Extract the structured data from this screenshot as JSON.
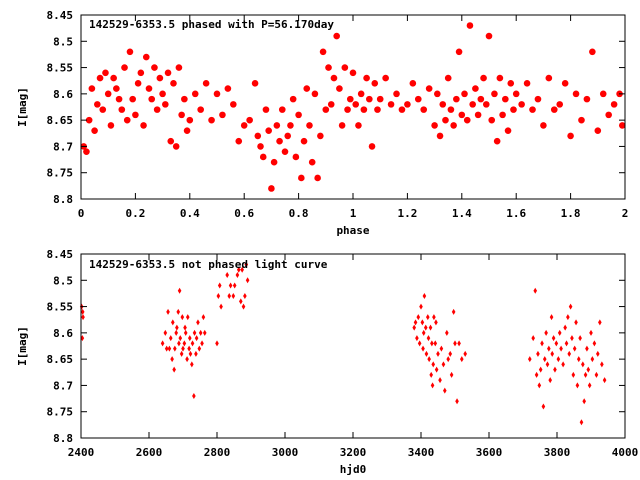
{
  "chart_data": [
    {
      "type": "scatter",
      "title": "142529-6353.5 phased with P=56.170day",
      "xlabel": "phase",
      "ylabel": "I[mag]",
      "xlim": [
        0,
        2
      ],
      "ylim": [
        8.45,
        8.8
      ],
      "y_inverted": true,
      "grid": false,
      "marker": "filled-circle",
      "color": "#ff0000",
      "xticks": [
        "0",
        "0.2",
        "0.4",
        "0.6",
        "0.8",
        "1",
        "1.2",
        "1.4",
        "1.6",
        "1.8",
        "2"
      ],
      "yticks": [
        "8.45",
        "8.5",
        "8.55",
        "8.6",
        "8.65",
        "8.7",
        "8.75",
        "8.8"
      ],
      "points": [
        [
          0.01,
          8.7
        ],
        [
          0.02,
          8.71
        ],
        [
          0.03,
          8.65
        ],
        [
          0.04,
          8.59
        ],
        [
          0.05,
          8.67
        ],
        [
          0.06,
          8.62
        ],
        [
          0.07,
          8.57
        ],
        [
          0.08,
          8.63
        ],
        [
          0.09,
          8.56
        ],
        [
          0.1,
          8.6
        ],
        [
          0.11,
          8.66
        ],
        [
          0.12,
          8.57
        ],
        [
          0.13,
          8.59
        ],
        [
          0.14,
          8.61
        ],
        [
          0.15,
          8.63
        ],
        [
          0.16,
          8.55
        ],
        [
          0.17,
          8.65
        ],
        [
          0.18,
          8.52
        ],
        [
          0.19,
          8.61
        ],
        [
          0.2,
          8.64
        ],
        [
          0.21,
          8.58
        ],
        [
          0.22,
          8.56
        ],
        [
          0.23,
          8.66
        ],
        [
          0.24,
          8.53
        ],
        [
          0.25,
          8.59
        ],
        [
          0.26,
          8.61
        ],
        [
          0.27,
          8.55
        ],
        [
          0.28,
          8.63
        ],
        [
          0.29,
          8.57
        ],
        [
          0.3,
          8.6
        ],
        [
          0.31,
          8.62
        ],
        [
          0.32,
          8.56
        ],
        [
          0.33,
          8.69
        ],
        [
          0.34,
          8.58
        ],
        [
          0.35,
          8.7
        ],
        [
          0.36,
          8.55
        ],
        [
          0.37,
          8.64
        ],
        [
          0.38,
          8.61
        ],
        [
          0.39,
          8.67
        ],
        [
          0.4,
          8.65
        ],
        [
          0.42,
          8.6
        ],
        [
          0.44,
          8.63
        ],
        [
          0.46,
          8.58
        ],
        [
          0.48,
          8.65
        ],
        [
          0.5,
          8.6
        ],
        [
          0.52,
          8.64
        ],
        [
          0.54,
          8.59
        ],
        [
          0.56,
          8.62
        ],
        [
          0.58,
          8.69
        ],
        [
          0.6,
          8.66
        ],
        [
          0.62,
          8.65
        ],
        [
          0.64,
          8.58
        ],
        [
          0.65,
          8.68
        ],
        [
          0.66,
          8.7
        ],
        [
          0.67,
          8.72
        ],
        [
          0.68,
          8.63
        ],
        [
          0.69,
          8.67
        ],
        [
          0.7,
          8.78
        ],
        [
          0.71,
          8.73
        ],
        [
          0.72,
          8.66
        ],
        [
          0.73,
          8.69
        ],
        [
          0.74,
          8.63
        ],
        [
          0.75,
          8.71
        ],
        [
          0.76,
          8.68
        ],
        [
          0.77,
          8.66
        ],
        [
          0.78,
          8.61
        ],
        [
          0.79,
          8.72
        ],
        [
          0.8,
          8.64
        ],
        [
          0.81,
          8.76
        ],
        [
          0.82,
          8.69
        ],
        [
          0.83,
          8.59
        ],
        [
          0.84,
          8.66
        ],
        [
          0.85,
          8.73
        ],
        [
          0.86,
          8.6
        ],
        [
          0.87,
          8.76
        ],
        [
          0.88,
          8.68
        ],
        [
          0.89,
          8.52
        ],
        [
          0.9,
          8.63
        ],
        [
          0.91,
          8.55
        ],
        [
          0.92,
          8.62
        ],
        [
          0.93,
          8.57
        ],
        [
          0.94,
          8.49
        ],
        [
          0.95,
          8.59
        ],
        [
          0.96,
          8.66
        ],
        [
          0.97,
          8.55
        ],
        [
          0.98,
          8.63
        ],
        [
          0.99,
          8.61
        ],
        [
          1.0,
          8.56
        ],
        [
          1.01,
          8.62
        ],
        [
          1.02,
          8.66
        ],
        [
          1.03,
          8.6
        ],
        [
          1.04,
          8.63
        ],
        [
          1.05,
          8.57
        ],
        [
          1.06,
          8.61
        ],
        [
          1.07,
          8.7
        ],
        [
          1.08,
          8.58
        ],
        [
          1.09,
          8.63
        ],
        [
          1.1,
          8.61
        ],
        [
          1.12,
          8.57
        ],
        [
          1.14,
          8.62
        ],
        [
          1.16,
          8.6
        ],
        [
          1.18,
          8.63
        ],
        [
          1.2,
          8.62
        ],
        [
          1.22,
          8.58
        ],
        [
          1.24,
          8.61
        ],
        [
          1.26,
          8.63
        ],
        [
          1.28,
          8.59
        ],
        [
          1.3,
          8.66
        ],
        [
          1.31,
          8.6
        ],
        [
          1.32,
          8.68
        ],
        [
          1.33,
          8.62
        ],
        [
          1.34,
          8.65
        ],
        [
          1.35,
          8.57
        ],
        [
          1.36,
          8.63
        ],
        [
          1.37,
          8.66
        ],
        [
          1.38,
          8.61
        ],
        [
          1.39,
          8.52
        ],
        [
          1.4,
          8.64
        ],
        [
          1.41,
          8.6
        ],
        [
          1.42,
          8.65
        ],
        [
          1.43,
          8.47
        ],
        [
          1.44,
          8.62
        ],
        [
          1.45,
          8.59
        ],
        [
          1.46,
          8.64
        ],
        [
          1.47,
          8.61
        ],
        [
          1.48,
          8.57
        ],
        [
          1.49,
          8.62
        ],
        [
          1.5,
          8.49
        ],
        [
          1.51,
          8.65
        ],
        [
          1.52,
          8.6
        ],
        [
          1.53,
          8.69
        ],
        [
          1.54,
          8.57
        ],
        [
          1.55,
          8.64
        ],
        [
          1.56,
          8.61
        ],
        [
          1.57,
          8.67
        ],
        [
          1.58,
          8.58
        ],
        [
          1.59,
          8.63
        ],
        [
          1.6,
          8.6
        ],
        [
          1.62,
          8.62
        ],
        [
          1.64,
          8.58
        ],
        [
          1.66,
          8.63
        ],
        [
          1.68,
          8.61
        ],
        [
          1.7,
          8.66
        ],
        [
          1.72,
          8.57
        ],
        [
          1.74,
          8.63
        ],
        [
          1.76,
          8.62
        ],
        [
          1.78,
          8.58
        ],
        [
          1.8,
          8.68
        ],
        [
          1.82,
          8.6
        ],
        [
          1.84,
          8.65
        ],
        [
          1.86,
          8.61
        ],
        [
          1.88,
          8.52
        ],
        [
          1.9,
          8.67
        ],
        [
          1.92,
          8.6
        ],
        [
          1.94,
          8.64
        ],
        [
          1.96,
          8.62
        ],
        [
          1.98,
          8.6
        ],
        [
          1.99,
          8.66
        ]
      ]
    },
    {
      "type": "scatter",
      "title": "142529-6353.5 not phased light curve",
      "xlabel": "hjd0",
      "ylabel": "I[mag]",
      "xlim": [
        2400,
        4000
      ],
      "ylim": [
        8.45,
        8.8
      ],
      "y_inverted": true,
      "grid": false,
      "marker": "small-diamond",
      "color": "#ff0000",
      "xticks": [
        "2400",
        "2600",
        "2800",
        "3000",
        "3200",
        "3400",
        "3600",
        "3800",
        "4000"
      ],
      "yticks": [
        "8.45",
        "8.5",
        "8.55",
        "8.6",
        "8.65",
        "8.7",
        "8.75",
        "8.8"
      ],
      "points": [
        [
          2402,
          8.55
        ],
        [
          2404,
          8.61
        ],
        [
          2406,
          8.57
        ],
        [
          2405,
          8.56
        ],
        [
          2640,
          8.62
        ],
        [
          2648,
          8.6
        ],
        [
          2652,
          8.63
        ],
        [
          2656,
          8.56
        ],
        [
          2660,
          8.63
        ],
        [
          2664,
          8.61
        ],
        [
          2668,
          8.65
        ],
        [
          2670,
          8.58
        ],
        [
          2674,
          8.67
        ],
        [
          2676,
          8.63
        ],
        [
          2680,
          8.6
        ],
        [
          2682,
          8.59
        ],
        [
          2686,
          8.56
        ],
        [
          2688,
          8.62
        ],
        [
          2690,
          8.52
        ],
        [
          2692,
          8.61
        ],
        [
          2696,
          8.64
        ],
        [
          2698,
          8.57
        ],
        [
          2700,
          8.63
        ],
        [
          2704,
          8.62
        ],
        [
          2706,
          8.59
        ],
        [
          2708,
          8.6
        ],
        [
          2712,
          8.65
        ],
        [
          2714,
          8.57
        ],
        [
          2718,
          8.63
        ],
        [
          2720,
          8.61
        ],
        [
          2722,
          8.64
        ],
        [
          2726,
          8.66
        ],
        [
          2728,
          8.62
        ],
        [
          2732,
          8.72
        ],
        [
          2734,
          8.6
        ],
        [
          2738,
          8.64
        ],
        [
          2740,
          8.61
        ],
        [
          2744,
          8.58
        ],
        [
          2748,
          8.63
        ],
        [
          2752,
          8.6
        ],
        [
          2756,
          8.62
        ],
        [
          2760,
          8.57
        ],
        [
          2764,
          8.6
        ],
        [
          2800,
          8.62
        ],
        [
          2804,
          8.53
        ],
        [
          2808,
          8.51
        ],
        [
          2812,
          8.55
        ],
        [
          2830,
          8.49
        ],
        [
          2836,
          8.53
        ],
        [
          2840,
          8.51
        ],
        [
          2848,
          8.53
        ],
        [
          2852,
          8.51
        ],
        [
          2860,
          8.49
        ],
        [
          2864,
          8.48
        ],
        [
          2870,
          8.54
        ],
        [
          2874,
          8.48
        ],
        [
          2878,
          8.55
        ],
        [
          2882,
          8.53
        ],
        [
          2886,
          8.47
        ],
        [
          2890,
          8.5
        ],
        [
          3380,
          8.59
        ],
        [
          3384,
          8.58
        ],
        [
          3388,
          8.61
        ],
        [
          3392,
          8.57
        ],
        [
          3396,
          8.62
        ],
        [
          3400,
          8.55
        ],
        [
          3404,
          8.58
        ],
        [
          3406,
          8.63
        ],
        [
          3408,
          8.6
        ],
        [
          3410,
          8.53
        ],
        [
          3414,
          8.59
        ],
        [
          3416,
          8.64
        ],
        [
          3420,
          8.57
        ],
        [
          3422,
          8.61
        ],
        [
          3424,
          8.65
        ],
        [
          3428,
          8.59
        ],
        [
          3430,
          8.68
        ],
        [
          3432,
          8.62
        ],
        [
          3434,
          8.7
        ],
        [
          3436,
          8.66
        ],
        [
          3438,
          8.57
        ],
        [
          3442,
          8.62
        ],
        [
          3444,
          8.58
        ],
        [
          3446,
          8.67
        ],
        [
          3450,
          8.64
        ],
        [
          3456,
          8.69
        ],
        [
          3460,
          8.63
        ],
        [
          3466,
          8.66
        ],
        [
          3470,
          8.71
        ],
        [
          3476,
          8.6
        ],
        [
          3480,
          8.65
        ],
        [
          3486,
          8.64
        ],
        [
          3490,
          8.68
        ],
        [
          3496,
          8.56
        ],
        [
          3500,
          8.62
        ],
        [
          3506,
          8.73
        ],
        [
          3512,
          8.62
        ],
        [
          3520,
          8.65
        ],
        [
          3530,
          8.64
        ],
        [
          3720,
          8.65
        ],
        [
          3730,
          8.61
        ],
        [
          3736,
          8.52
        ],
        [
          3740,
          8.68
        ],
        [
          3744,
          8.64
        ],
        [
          3748,
          8.7
        ],
        [
          3752,
          8.67
        ],
        [
          3756,
          8.62
        ],
        [
          3760,
          8.74
        ],
        [
          3764,
          8.65
        ],
        [
          3768,
          8.6
        ],
        [
          3772,
          8.66
        ],
        [
          3776,
          8.63
        ],
        [
          3780,
          8.69
        ],
        [
          3784,
          8.57
        ],
        [
          3786,
          8.64
        ],
        [
          3790,
          8.61
        ],
        [
          3794,
          8.67
        ],
        [
          3798,
          8.62
        ],
        [
          3804,
          8.65
        ],
        [
          3808,
          8.6
        ],
        [
          3812,
          8.63
        ],
        [
          3818,
          8.66
        ],
        [
          3824,
          8.59
        ],
        [
          3828,
          8.62
        ],
        [
          3832,
          8.57
        ],
        [
          3836,
          8.64
        ],
        [
          3840,
          8.55
        ],
        [
          3844,
          8.61
        ],
        [
          3848,
          8.68
        ],
        [
          3852,
          8.63
        ],
        [
          3856,
          8.58
        ],
        [
          3860,
          8.7
        ],
        [
          3864,
          8.65
        ],
        [
          3868,
          8.61
        ],
        [
          3872,
          8.77
        ],
        [
          3876,
          8.66
        ],
        [
          3880,
          8.73
        ],
        [
          3884,
          8.68
        ],
        [
          3888,
          8.63
        ],
        [
          3892,
          8.67
        ],
        [
          3896,
          8.7
        ],
        [
          3900,
          8.6
        ],
        [
          3904,
          8.65
        ],
        [
          3910,
          8.62
        ],
        [
          3916,
          8.68
        ],
        [
          3920,
          8.64
        ],
        [
          3926,
          8.58
        ],
        [
          3932,
          8.66
        ],
        [
          3940,
          8.69
        ]
      ]
    }
  ]
}
